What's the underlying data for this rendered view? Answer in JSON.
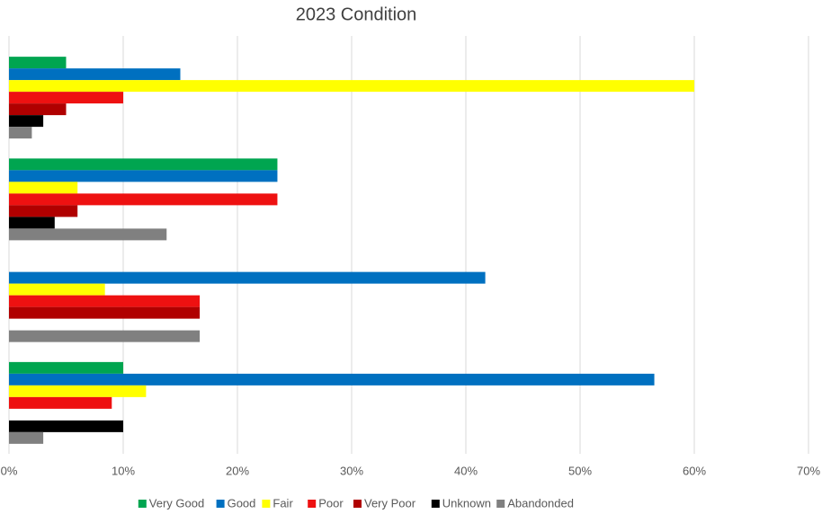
{
  "chart_data": {
    "type": "barh",
    "title": "2023 Condition",
    "categories": [
      null,
      null,
      null,
      null
    ],
    "series": [
      {
        "name": "Very Good",
        "color": "#00a550",
        "values": [
          5,
          23.5,
          0,
          10
        ]
      },
      {
        "name": "Good",
        "color": "#0070c0",
        "values": [
          15,
          23.5,
          41.7,
          56.5
        ]
      },
      {
        "name": "Fair",
        "color": "#ffff00",
        "values": [
          60,
          6,
          8.4,
          12
        ]
      },
      {
        "name": "Poor",
        "color": "#ee1111",
        "values": [
          10,
          23.5,
          16.7,
          9
        ]
      },
      {
        "name": "Very Poor",
        "color": "#b00000",
        "values": [
          5,
          6,
          16.7,
          0
        ]
      },
      {
        "name": "Unknown",
        "color": "#000000",
        "values": [
          3,
          4,
          0,
          10
        ]
      },
      {
        "name": "Abandonded",
        "color": "#808080",
        "values": [
          2,
          13.8,
          16.7,
          3
        ]
      }
    ],
    "xlim": [
      0,
      70
    ],
    "xticks": [
      {
        "value": 0,
        "label": "0%"
      },
      {
        "value": 10,
        "label": "10%"
      },
      {
        "value": 20,
        "label": "20%"
      },
      {
        "value": 30,
        "label": "30%"
      },
      {
        "value": 40,
        "label": "40%"
      },
      {
        "value": 50,
        "label": "50%"
      },
      {
        "value": 60,
        "label": "60%"
      },
      {
        "value": 70,
        "label": "70%"
      }
    ],
    "grid": true,
    "legend": "bottom"
  }
}
